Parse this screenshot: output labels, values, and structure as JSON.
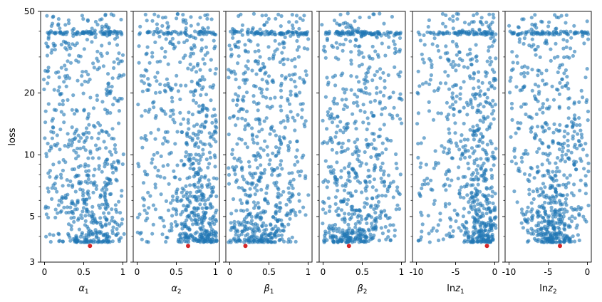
{
  "chart_data": {
    "type": "scatter",
    "ylabel": "loss",
    "yscale": "log",
    "ylim": [
      3,
      50
    ],
    "yticks_major": [
      3,
      5,
      10,
      20,
      50
    ],
    "yticks_minor": [
      4,
      6,
      7,
      8,
      9,
      30,
      40
    ],
    "colors": {
      "points": "#1f77b4",
      "best": "#d62728"
    },
    "point_count_per_panel": 700,
    "panels": [
      {
        "param": "alpha1",
        "base": "α",
        "sub": "1",
        "xlim": [
          -0.05,
          1.05
        ],
        "xticks": [
          0,
          0.5,
          1
        ],
        "xtick_labels": [
          "0",
          "0.5",
          "1"
        ],
        "best": {
          "x": 0.58,
          "y": 3.6
        },
        "mode": 0.6,
        "spread": 0.3
      },
      {
        "param": "alpha2",
        "base": "α",
        "sub": "2",
        "xlim": [
          -0.05,
          1.05
        ],
        "xticks": [
          0,
          0.5,
          1
        ],
        "xtick_labels": [
          "0",
          "0.5",
          "1"
        ],
        "best": {
          "x": 0.65,
          "y": 3.6
        },
        "mode": 0.85,
        "spread": 0.22
      },
      {
        "param": "beta1",
        "base": "β",
        "sub": "1",
        "xlim": [
          -0.05,
          1.05
        ],
        "xticks": [
          0,
          0.5,
          1
        ],
        "xtick_labels": [
          "0",
          "0.5",
          "1"
        ],
        "best": {
          "x": 0.2,
          "y": 3.6
        },
        "mode": 0.35,
        "spread": 0.3
      },
      {
        "param": "beta2",
        "base": "β",
        "sub": "2",
        "xlim": [
          -0.05,
          1.05
        ],
        "xticks": [
          0,
          0.5,
          1
        ],
        "xtick_labels": [
          "0",
          "0.5",
          "1"
        ],
        "best": {
          "x": 0.33,
          "y": 3.6
        },
        "mode": 0.35,
        "spread": 0.3
      },
      {
        "param": "lnz1",
        "base": "ln",
        "sub": "1",
        "var": "z",
        "xlim": [
          -10.5,
          0.5
        ],
        "xticks": [
          -10,
          -5,
          0
        ],
        "xtick_labels": [
          "-10",
          "-5",
          "0"
        ],
        "best": {
          "x": -1.0,
          "y": 3.6
        },
        "mode": -1.0,
        "spread": 2.2
      },
      {
        "param": "lnz2",
        "base": "ln",
        "sub": "2",
        "var": "z",
        "xlim": [
          -10.5,
          0.5
        ],
        "xticks": [
          -10,
          -5,
          0
        ],
        "xtick_labels": [
          "-10",
          "-5",
          "0"
        ],
        "best": {
          "x": -3.5,
          "y": 3.6
        },
        "mode": -4.5,
        "spread": 2.0
      }
    ]
  }
}
